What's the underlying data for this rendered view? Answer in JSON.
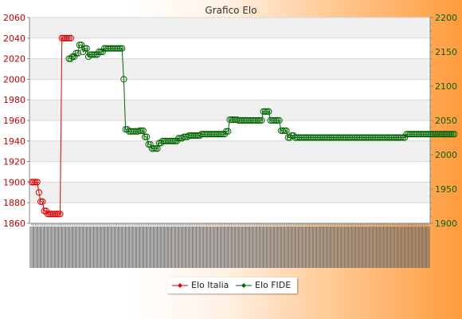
{
  "chart_data": {
    "type": "line",
    "title": "Grafico Elo",
    "series": [
      {
        "name": "Elo Italia",
        "axis": "left",
        "color": "#dd0000",
        "start_index": 0,
        "values": [
          1900,
          1900,
          1900,
          1900,
          1890,
          1881,
          1881,
          1872,
          1872,
          1869,
          1869,
          1869,
          1869,
          1869,
          1869,
          1869,
          1869,
          2040,
          2040,
          2040,
          2040,
          2040,
          2040
        ]
      },
      {
        "name": "Elo FIDE",
        "axis": "right",
        "color": "#006600",
        "start_index": 21,
        "values": [
          2140,
          2140,
          2143,
          2143,
          2148,
          2148,
          2160,
          2160,
          2150,
          2155,
          2155,
          2143,
          2146,
          2146,
          2146,
          2146,
          2146,
          2150,
          2150,
          2150,
          2155,
          2155,
          2155,
          2155,
          2155,
          2155,
          2155,
          2155,
          2155,
          2155,
          2155,
          2110,
          2037,
          2037,
          2034,
          2034,
          2034,
          2034,
          2034,
          2034,
          2035,
          2035,
          2035,
          2026,
          2026,
          2015,
          2015,
          2009,
          2009,
          2009,
          2009,
          2017,
          2017,
          2020,
          2020,
          2020,
          2020,
          2020,
          2020,
          2020,
          2020,
          2020,
          2024,
          2024,
          2024,
          2026,
          2026,
          2026,
          2028,
          2028,
          2028,
          2028,
          2028,
          2028,
          2028,
          2030,
          2030,
          2030,
          2030,
          2030,
          2030,
          2030,
          2030,
          2030,
          2030,
          2030,
          2030,
          2030,
          2030,
          2034,
          2034,
          2051,
          2051,
          2051,
          2051,
          2051,
          2050,
          2050,
          2050,
          2050,
          2050,
          2050,
          2050,
          2050,
          2050,
          2050,
          2050,
          2050,
          2050,
          2050,
          2063,
          2063,
          2063,
          2063,
          2050,
          2050,
          2050,
          2050,
          2050,
          2050,
          2035,
          2035,
          2035,
          2035,
          2025,
          2025,
          2028,
          2028,
          2025,
          2025,
          2025,
          2025,
          2025,
          2025,
          2025,
          2025,
          2025,
          2025,
          2025,
          2025,
          2025,
          2025,
          2025,
          2025,
          2025,
          2025,
          2025,
          2025,
          2025,
          2025,
          2025,
          2025,
          2025,
          2025,
          2025,
          2025,
          2025,
          2025,
          2025,
          2025,
          2025,
          2025,
          2025,
          2025,
          2025,
          2025,
          2025,
          2025,
          2025,
          2025,
          2025,
          2025,
          2025,
          2025,
          2025,
          2025,
          2025,
          2025,
          2025,
          2025,
          2025,
          2025,
          2025,
          2025,
          2025,
          2025,
          2025,
          2025,
          2025,
          2025,
          2025,
          2030,
          2030,
          2030,
          2030,
          2030,
          2030,
          2030,
          2030,
          2030,
          2030,
          2030,
          2030,
          2030,
          2030,
          2030,
          2030,
          2030,
          2030,
          2030,
          2030,
          2030,
          2030,
          2030,
          2030,
          2030,
          2030,
          2030,
          2030
        ]
      }
    ],
    "y_left": {
      "min": 1860,
      "max": 2060,
      "ticks": [
        1860,
        1880,
        1900,
        1920,
        1940,
        1960,
        1980,
        2000,
        2020,
        2040,
        2060
      ],
      "color": "#c00000"
    },
    "y_right": {
      "min": 1900,
      "max": 2200,
      "ticks": [
        1900,
        1950,
        2000,
        2050,
        2100,
        2150,
        2200
      ],
      "color": "#006600"
    },
    "x_count": 225,
    "x_tick_labels": "illegible, overlapping date labels",
    "grid": true,
    "legend_position": "bottom-center"
  },
  "colors": {
    "band_light": "#ffffff",
    "band_dark": "#f0f0f0",
    "axis": "#888888"
  }
}
